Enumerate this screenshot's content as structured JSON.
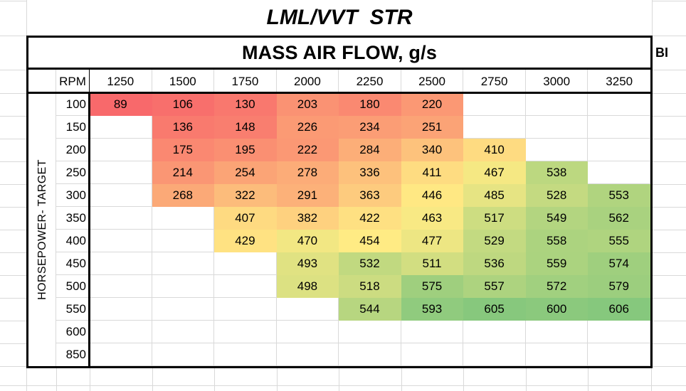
{
  "title": "LML/VVT  STR",
  "header": "MASS AIR FLOW, g/s",
  "labels": {
    "bi": "BI",
    "rpm": "RPM",
    "vertical_axis": "HORSEPOWER- TARGET"
  },
  "chart_data": {
    "type": "heatmap",
    "title": "MASS AIR FLOW, g/s",
    "xlabel": "RPM",
    "ylabel": "HORSEPOWER- TARGET",
    "columns": [
      1250,
      1500,
      1750,
      2000,
      2250,
      2500,
      2750,
      3000,
      3250
    ],
    "rows": [
      100,
      150,
      200,
      250,
      300,
      350,
      400,
      450,
      500,
      550,
      600,
      850
    ],
    "values": [
      [
        89,
        106,
        130,
        203,
        180,
        220,
        null,
        null,
        null
      ],
      [
        null,
        136,
        148,
        226,
        234,
        251,
        null,
        null,
        null
      ],
      [
        null,
        175,
        195,
        222,
        284,
        340,
        410,
        null,
        null
      ],
      [
        null,
        214,
        254,
        278,
        336,
        411,
        467,
        538,
        null
      ],
      [
        null,
        268,
        322,
        291,
        363,
        446,
        485,
        528,
        553
      ],
      [
        null,
        null,
        407,
        382,
        422,
        463,
        517,
        549,
        562
      ],
      [
        null,
        null,
        429,
        470,
        454,
        477,
        529,
        558,
        555
      ],
      [
        null,
        null,
        null,
        493,
        532,
        511,
        536,
        559,
        574
      ],
      [
        null,
        null,
        null,
        498,
        518,
        575,
        557,
        572,
        579
      ],
      [
        null,
        null,
        null,
        null,
        544,
        593,
        605,
        600,
        606
      ],
      [
        null,
        null,
        null,
        null,
        null,
        null,
        null,
        null,
        null
      ],
      [
        null,
        null,
        null,
        null,
        null,
        null,
        null,
        null,
        null
      ]
    ],
    "color_scale": {
      "min": 89,
      "mid": 454,
      "max": 650,
      "min_color": "#F8696B",
      "mid_color": "#FFEB84",
      "max_color": "#63BE7B"
    },
    "gridline_color": "#d9d9d9",
    "border_color": "#000000"
  }
}
